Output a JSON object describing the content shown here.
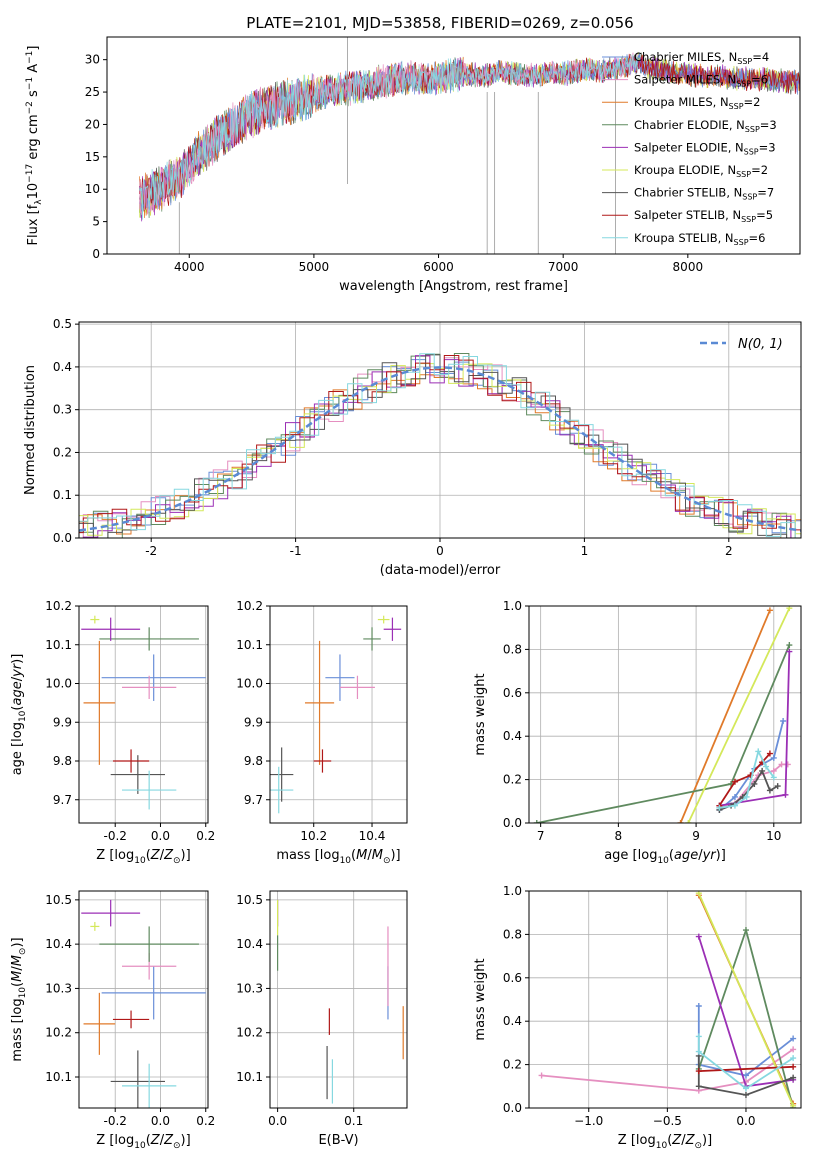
{
  "title": "PLATE=2101, MJD=53858, FIBERID=0269, z=0.056",
  "colors": {
    "Chabrier MILES": "#6a8fd8",
    "Salpeter MILES": "#e58fc0",
    "Kroupa MILES": "#e07a2a",
    "Chabrier ELODIE": "#5f8a5f",
    "Salpeter ELODIE": "#9b2fb5",
    "Kroupa ELODIE": "#d4e85a",
    "Chabrier STELIB": "#555555",
    "Salpeter STELIB": "#b01818",
    "Kroupa STELIB": "#86d8e0"
  },
  "chart_data": [
    {
      "type": "line",
      "title": "PLATE=2101, MJD=53858, FIBERID=0269, z=0.056",
      "xlabel": "wavelength [Angstrom, rest frame]",
      "ylabel": "Flux [fλ10⁻¹⁷ erg cm⁻² s⁻¹ A⁻¹]",
      "xlim": [
        3340,
        8900
      ],
      "ylim": [
        0,
        33.5
      ],
      "xticks": [
        4000,
        5000,
        6000,
        7000,
        8000
      ],
      "yticks": [
        0,
        5,
        10,
        15,
        20,
        25,
        30
      ],
      "grid": false,
      "legend_position": "right",
      "legend": [
        "Chabrier MILES, N_SSP=4",
        "Salpeter MILES, N_SSP=6",
        "Kroupa MILES, N_SSP=2",
        "Chabrier ELODIE, N_SSP=3",
        "Salpeter ELODIE, N_SSP=3",
        "Kroupa ELODIE, N_SSP=2",
        "Chabrier STELIB, N_SSP=7",
        "Salpeter STELIB, N_SSP=5",
        "Kroupa STELIB, N_SSP=6"
      ],
      "spectrum": {
        "x": [
          3600,
          3700,
          3800,
          3900,
          4000,
          4100,
          4200,
          4300,
          4400,
          4500,
          4600,
          4700,
          4800,
          4900,
          5000,
          5100,
          5200,
          5300,
          5400,
          5500,
          5600,
          5700,
          5800,
          5900,
          6000,
          6100,
          6200,
          6300,
          6400,
          6500,
          6600,
          6700,
          6800,
          6900,
          7000,
          7100,
          7200,
          7300,
          7400,
          7500,
          7600,
          7700,
          7800,
          7900,
          8000,
          8100,
          8200,
          8300,
          8400,
          8500,
          8600,
          8700,
          8800,
          8900
        ],
        "y": [
          8.5,
          9.5,
          10.5,
          11.5,
          13.5,
          16.0,
          17.5,
          19.0,
          20.5,
          21.5,
          22.5,
          23.0,
          23.5,
          24.0,
          24.5,
          25.0,
          25.3,
          25.7,
          26.0,
          26.4,
          26.8,
          27.2,
          27.3,
          27.0,
          27.2,
          27.5,
          27.8,
          27.6,
          27.5,
          28.3,
          27.8,
          27.6,
          27.5,
          28.0,
          27.8,
          28.2,
          28.6,
          28.2,
          28.6,
          29.0,
          29.5,
          28.8,
          28.3,
          28.0,
          27.8,
          27.5,
          27.4,
          27.3,
          27.2,
          27.0,
          26.9,
          26.8,
          26.6,
          26.5
        ]
      }
    },
    {
      "type": "histogram",
      "xlabel": "(data-model)/error",
      "ylabel": "Normed distribution",
      "xlim": [
        -2.5,
        2.5
      ],
      "ylim": [
        0,
        0.505
      ],
      "xticks": [
        -2,
        -1,
        0,
        1,
        2
      ],
      "yticks": [
        0.0,
        0.1,
        0.2,
        0.3,
        0.4,
        0.5
      ],
      "grid": true,
      "legend_position": "top-right",
      "legend": [
        "N(0,1)"
      ],
      "reference_curve": "standard normal N(0,1)",
      "bin_width": 0.1
    },
    {
      "type": "scatter",
      "xlabel": "Z [log10(Z/Z⊙)]",
      "ylabel": "age  [log10(age/yr)]",
      "xlim": [
        -0.36,
        0.21
      ],
      "ylim": [
        9.64,
        10.2
      ],
      "xticks": [
        -0.2,
        0.0,
        0.2
      ],
      "yticks": [
        9.7,
        9.8,
        9.9,
        10.0,
        10.1,
        10.2
      ],
      "grid": true,
      "series": [
        {
          "name": "Chabrier MILES",
          "x": -0.03,
          "y": 10.015,
          "xerr": 0.23,
          "yerr": 0.06
        },
        {
          "name": "Salpeter MILES",
          "x": -0.05,
          "y": 9.99,
          "xerr": 0.12,
          "yerr": 0.03
        },
        {
          "name": "Kroupa MILES",
          "x": -0.27,
          "y": 9.95,
          "xerr": 0.07,
          "yerr": 0.16
        },
        {
          "name": "Chabrier ELODIE",
          "x": -0.05,
          "y": 10.115,
          "xerr": 0.22,
          "yerr": 0.03
        },
        {
          "name": "Salpeter ELODIE",
          "x": -0.22,
          "y": 10.14,
          "xerr": 0.13,
          "yerr": 0.03
        },
        {
          "name": "Kroupa ELODIE",
          "x": -0.29,
          "y": 10.165,
          "xerr": 0.02,
          "yerr": 0.01
        },
        {
          "name": "Chabrier STELIB",
          "x": -0.1,
          "y": 9.765,
          "xerr": 0.12,
          "yerr": 0.05
        },
        {
          "name": "Salpeter STELIB",
          "x": -0.13,
          "y": 9.8,
          "xerr": 0.08,
          "yerr": 0.03
        },
        {
          "name": "Kroupa STELIB",
          "x": -0.05,
          "y": 9.725,
          "xerr": 0.12,
          "yerr": 0.05
        }
      ]
    },
    {
      "type": "scatter",
      "xlabel": "mass [log10(M/M⊙)]",
      "ylabel": "",
      "xlim": [
        10.05,
        10.52
      ],
      "ylim": [
        9.64,
        10.2
      ],
      "xticks": [
        10.2,
        10.4
      ],
      "yticks": [
        9.7,
        9.8,
        9.9,
        10.0,
        10.1,
        10.2
      ],
      "grid": true,
      "series": [
        {
          "name": "Chabrier MILES",
          "x": 10.29,
          "y": 10.015,
          "xerr": 0.05,
          "yerr": 0.06
        },
        {
          "name": "Salpeter MILES",
          "x": 10.35,
          "y": 9.99,
          "xerr": 0.06,
          "yerr": 0.03
        },
        {
          "name": "Kroupa MILES",
          "x": 10.22,
          "y": 9.95,
          "xerr": 0.05,
          "yerr": 0.16
        },
        {
          "name": "Chabrier ELODIE",
          "x": 10.4,
          "y": 10.115,
          "xerr": 0.03,
          "yerr": 0.03
        },
        {
          "name": "Salpeter ELODIE",
          "x": 10.47,
          "y": 10.14,
          "xerr": 0.03,
          "yerr": 0.03
        },
        {
          "name": "Kroupa ELODIE",
          "x": 10.44,
          "y": 10.165,
          "xerr": 0.02,
          "yerr": 0.01
        },
        {
          "name": "Chabrier STELIB",
          "x": 10.09,
          "y": 9.765,
          "xerr": 0.04,
          "yerr": 0.07
        },
        {
          "name": "Salpeter STELIB",
          "x": 10.23,
          "y": 9.8,
          "xerr": 0.03,
          "yerr": 0.03
        },
        {
          "name": "Kroupa STELIB",
          "x": 10.08,
          "y": 9.725,
          "xerr": 0.05,
          "yerr": 0.06
        }
      ]
    },
    {
      "type": "line",
      "xlabel": "age  [log10(age/yr)]",
      "ylabel": "mass weight",
      "xlim": [
        6.85,
        10.35
      ],
      "ylim": [
        0,
        1.0
      ],
      "xticks": [
        7,
        8,
        9,
        10
      ],
      "yticks": [
        0.0,
        0.2,
        0.4,
        0.6,
        0.8,
        1.0
      ],
      "grid": true,
      "series": [
        {
          "name": "Chabrier MILES",
          "x": [
            9.3,
            9.5,
            9.75,
            10.0,
            10.12
          ],
          "y": [
            0.06,
            0.12,
            0.25,
            0.3,
            0.47
          ]
        },
        {
          "name": "Salpeter MILES",
          "x": [
            9.3,
            9.5,
            9.8,
            10.0,
            10.1,
            10.18
          ],
          "y": [
            0.07,
            0.09,
            0.22,
            0.24,
            0.27,
            0.27
          ]
        },
        {
          "name": "Kroupa MILES",
          "x": [
            8.8,
            9.95
          ],
          "y": [
            0.0,
            0.98
          ]
        },
        {
          "name": "Chabrier ELODIE",
          "x": [
            6.95,
            9.45,
            10.2
          ],
          "y": [
            0.0,
            0.18,
            0.82
          ]
        },
        {
          "name": "Salpeter ELODIE",
          "x": [
            9.3,
            10.15,
            10.2
          ],
          "y": [
            0.08,
            0.13,
            0.79
          ]
        },
        {
          "name": "Kroupa ELODIE",
          "x": [
            8.9,
            10.2
          ],
          "y": [
            0.0,
            0.99
          ]
        },
        {
          "name": "Chabrier STELIB",
          "x": [
            9.3,
            9.45,
            9.6,
            9.75,
            9.85,
            9.95,
            10.05
          ],
          "y": [
            0.06,
            0.08,
            0.12,
            0.18,
            0.24,
            0.15,
            0.17
          ]
        },
        {
          "name": "Salpeter STELIB",
          "x": [
            9.3,
            9.5,
            9.7,
            9.85,
            9.95
          ],
          "y": [
            0.08,
            0.19,
            0.22,
            0.28,
            0.32
          ]
        },
        {
          "name": "Kroupa STELIB",
          "x": [
            9.3,
            9.5,
            9.65,
            9.8,
            9.9,
            10.0
          ],
          "y": [
            0.07,
            0.08,
            0.12,
            0.33,
            0.26,
            0.21
          ]
        }
      ]
    },
    {
      "type": "scatter",
      "xlabel": "Z [log10(Z/Z⊙)]",
      "ylabel": "mass [log10(M/M⊙)]",
      "xlim": [
        -0.36,
        0.21
      ],
      "ylim": [
        10.03,
        10.52
      ],
      "xticks": [
        -0.2,
        0.0,
        0.2
      ],
      "yticks": [
        10.1,
        10.2,
        10.3,
        10.4,
        10.5
      ],
      "grid": true,
      "series": [
        {
          "name": "Chabrier MILES",
          "x": -0.03,
          "y": 10.29,
          "xerr": 0.23,
          "yerr": 0.06
        },
        {
          "name": "Salpeter MILES",
          "x": -0.05,
          "y": 10.35,
          "xerr": 0.12,
          "yerr": 0.03
        },
        {
          "name": "Kroupa MILES",
          "x": -0.27,
          "y": 10.22,
          "xerr": 0.07,
          "yerr": 0.07
        },
        {
          "name": "Chabrier ELODIE",
          "x": -0.05,
          "y": 10.4,
          "xerr": 0.22,
          "yerr": 0.04
        },
        {
          "name": "Salpeter ELODIE",
          "x": -0.22,
          "y": 10.47,
          "xerr": 0.13,
          "yerr": 0.03
        },
        {
          "name": "Kroupa ELODIE",
          "x": -0.29,
          "y": 10.44,
          "xerr": 0.02,
          "yerr": 0.01
        },
        {
          "name": "Chabrier STELIB",
          "x": -0.1,
          "y": 10.09,
          "xerr": 0.12,
          "yerr": 0.07
        },
        {
          "name": "Salpeter STELIB",
          "x": -0.13,
          "y": 10.23,
          "xerr": 0.08,
          "yerr": 0.02
        },
        {
          "name": "Kroupa STELIB",
          "x": -0.05,
          "y": 10.08,
          "xerr": 0.12,
          "yerr": 0.05
        }
      ]
    },
    {
      "type": "scatter",
      "xlabel": "E(B-V)",
      "ylabel": "",
      "xlim": [
        -0.01,
        0.17
      ],
      "ylim": [
        10.03,
        10.52
      ],
      "xticks": [
        0.0,
        0.1
      ],
      "yticks": [
        10.1,
        10.2,
        10.3,
        10.4,
        10.5
      ],
      "grid": true,
      "series": [
        {
          "name": "Chabrier MILES",
          "x": 0.145,
          "y": 10.29,
          "xerr": 0,
          "yerr": 0.06
        },
        {
          "name": "Salpeter MILES",
          "x": 0.145,
          "y": 10.35,
          "xerr": 0,
          "yerr": 0.09
        },
        {
          "name": "Kroupa MILES",
          "x": 0.165,
          "y": 10.2,
          "xerr": 0,
          "yerr": 0.06
        },
        {
          "name": "Chabrier ELODIE",
          "x": 0.0,
          "y": 10.38,
          "xerr": 0,
          "yerr": 0.04
        },
        {
          "name": "Salpeter ELODIE",
          "x": 0.0,
          "y": 10.47,
          "xerr": 0,
          "yerr": 0.03
        },
        {
          "name": "Kroupa ELODIE",
          "x": 0.0,
          "y": 10.46,
          "xerr": 0,
          "yerr": 0.04
        },
        {
          "name": "Chabrier STELIB",
          "x": 0.065,
          "y": 10.11,
          "xerr": 0,
          "yerr": 0.06
        },
        {
          "name": "Salpeter STELIB",
          "x": 0.068,
          "y": 10.225,
          "xerr": 0,
          "yerr": 0.03
        },
        {
          "name": "Kroupa STELIB",
          "x": 0.072,
          "y": 10.09,
          "xerr": 0,
          "yerr": 0.05
        }
      ]
    },
    {
      "type": "line",
      "xlabel": "Z [log10(Z/Z⊙)]",
      "ylabel": "mass weight",
      "xlim": [
        -1.38,
        0.35
      ],
      "ylim": [
        0,
        1.0
      ],
      "xticks": [
        -1.0,
        -0.5,
        0.0
      ],
      "yticks": [
        0.0,
        0.2,
        0.4,
        0.6,
        0.8,
        1.0
      ],
      "grid": true,
      "series": [
        {
          "name": "Chabrier MILES",
          "x": [
            -0.3,
            -0.3,
            0.0,
            0.3
          ],
          "y": [
            0.47,
            0.2,
            0.15,
            0.32
          ]
        },
        {
          "name": "Salpeter MILES",
          "x": [
            -1.3,
            -0.3,
            0.0,
            0.3
          ],
          "y": [
            0.15,
            0.08,
            0.12,
            0.27
          ]
        },
        {
          "name": "Kroupa MILES",
          "x": [
            -0.3,
            0.3
          ],
          "y": [
            0.98,
            0.02
          ]
        },
        {
          "name": "Chabrier ELODIE",
          "x": [
            -0.3,
            0.0,
            0.3
          ],
          "y": [
            0.18,
            0.82,
            0.0
          ]
        },
        {
          "name": "Salpeter ELODIE",
          "x": [
            -0.3,
            0.0,
            0.3
          ],
          "y": [
            0.79,
            0.1,
            0.13
          ]
        },
        {
          "name": "Kroupa ELODIE",
          "x": [
            -0.3,
            0.3
          ],
          "y": [
            0.99,
            0.01
          ]
        },
        {
          "name": "Chabrier STELIB",
          "x": [
            -0.3,
            -0.3,
            0.0,
            0.3
          ],
          "y": [
            0.24,
            0.1,
            0.06,
            0.14
          ]
        },
        {
          "name": "Salpeter STELIB",
          "x": [
            -0.3,
            0.3
          ],
          "y": [
            0.17,
            0.19
          ]
        },
        {
          "name": "Kroupa STELIB",
          "x": [
            -0.3,
            -0.3,
            0.0,
            0.3
          ],
          "y": [
            0.33,
            0.26,
            0.09,
            0.23
          ]
        }
      ]
    }
  ]
}
